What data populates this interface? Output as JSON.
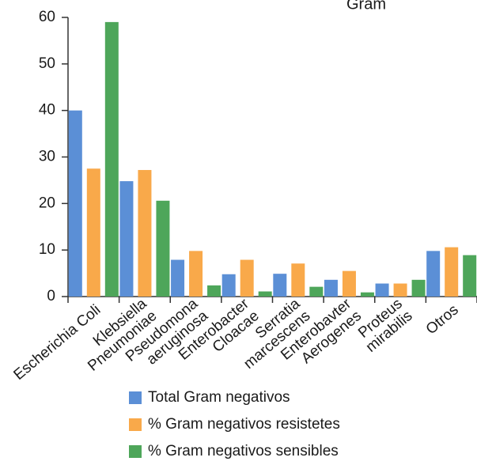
{
  "chart_data": {
    "type": "bar",
    "title": "Gram",
    "xlabel": "",
    "ylabel": "",
    "ylim": [
      0,
      60
    ],
    "yticks": [
      0,
      10,
      20,
      30,
      40,
      50,
      60
    ],
    "grid": false,
    "legend_position": "bottom",
    "categories": [
      [
        "Escherichia Coli"
      ],
      [
        "Klebsiella",
        "Pneumoniae"
      ],
      [
        "Pseudomona",
        "aeruginosa"
      ],
      [
        "Enterobacter",
        "Cloacae"
      ],
      [
        "Serratia",
        "marcescens"
      ],
      [
        "Enterobavter",
        "Aerogenes"
      ],
      [
        "Proteus",
        "mirabilis"
      ],
      [
        "Otros"
      ]
    ],
    "series": [
      {
        "name": "Total Gram negativos",
        "color": "#5b8fd6",
        "values": [
          40,
          24.8,
          7.9,
          4.8,
          4.9,
          3.6,
          2.8,
          9.8
        ]
      },
      {
        "name": "% Gram negativos resistetes",
        "color": "#f9a94a",
        "values": [
          27.5,
          27.2,
          9.8,
          7.9,
          7.1,
          5.5,
          2.8,
          10.6
        ]
      },
      {
        "name": "% Gram negativos sensibles",
        "color": "#4ea65a",
        "values": [
          59,
          20.6,
          2.4,
          1.1,
          2.1,
          0.9,
          3.6,
          8.9
        ]
      }
    ]
  }
}
